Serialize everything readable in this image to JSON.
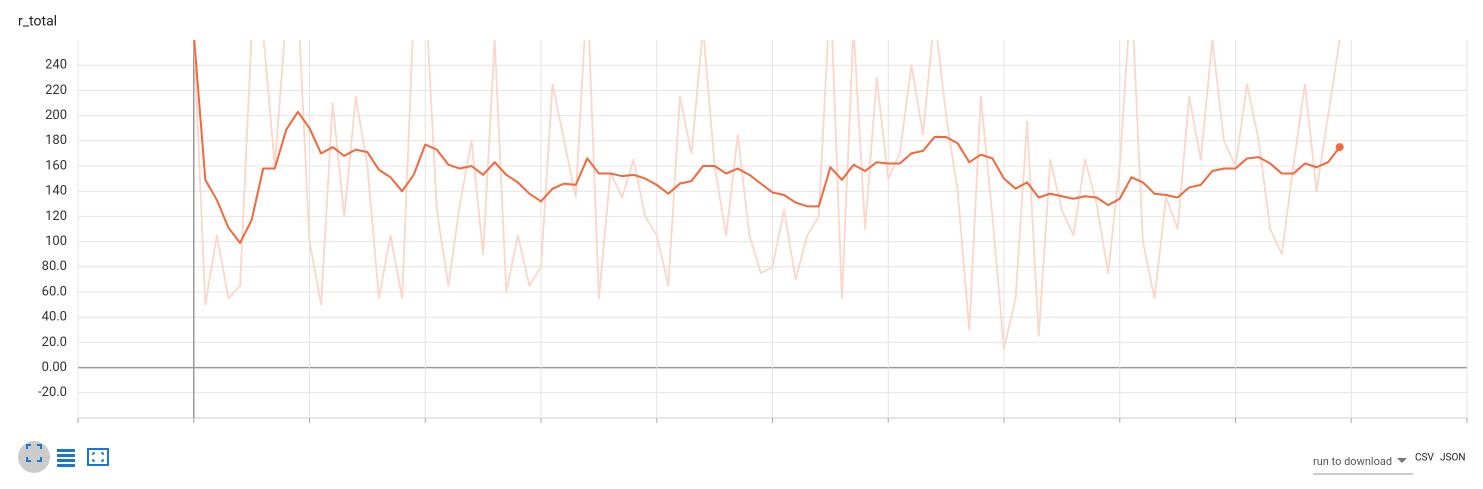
{
  "chart_data": {
    "type": "line",
    "title": "r_total",
    "x": [
      0,
      1,
      2,
      3,
      4,
      5,
      6,
      7,
      8,
      9,
      10,
      11,
      12,
      13,
      14,
      15,
      16,
      17,
      18,
      19,
      20,
      21,
      22,
      23,
      24,
      25,
      26,
      27,
      28,
      29,
      30,
      31,
      32,
      33,
      34,
      35,
      36,
      37,
      38,
      39,
      40,
      41,
      42,
      43,
      44,
      45,
      46,
      47,
      48,
      49,
      50,
      51,
      52,
      53,
      54,
      55,
      56,
      57,
      58,
      59,
      60,
      61,
      62,
      63,
      64,
      65,
      66,
      67,
      68,
      69,
      70,
      71,
      72,
      73,
      74,
      75,
      76,
      77,
      78,
      79,
      80,
      81,
      82,
      83,
      84,
      85,
      86,
      87,
      88,
      89,
      90,
      91,
      92,
      93,
      94,
      95,
      96,
      97,
      98,
      99
    ],
    "series": [
      {
        "color": "#fcd6c8",
        "values": [
          265,
          50,
          105,
          55,
          65,
          265,
          265,
          160,
          280,
          290,
          100,
          50,
          210,
          120,
          215,
          160,
          55,
          105,
          55,
          280,
          300,
          125,
          65,
          130,
          180,
          90,
          260,
          60,
          105,
          65,
          80,
          225,
          180,
          135,
          300,
          55,
          155,
          135,
          165,
          120,
          105,
          65,
          215,
          170,
          270,
          160,
          105,
          185,
          105,
          75,
          80,
          125,
          70,
          105,
          120,
          300,
          55,
          270,
          110,
          230,
          150,
          170,
          240,
          185,
          280,
          200,
          140,
          30,
          215,
          120,
          15,
          55,
          195,
          25,
          165,
          125,
          105,
          165,
          130,
          75,
          160,
          300,
          100,
          55,
          135,
          110,
          215,
          165,
          260,
          180,
          160,
          225,
          180,
          110,
          90,
          160,
          225,
          140,
          200,
          260
        ]
      },
      {
        "color": "#f4673a",
        "values": [
          265,
          149,
          133,
          111,
          99,
          117,
          158,
          158,
          189,
          203,
          190,
          170,
          175,
          168,
          173,
          171,
          157,
          151,
          140,
          153,
          177,
          173,
          161,
          158,
          160,
          153,
          163,
          153,
          147,
          138,
          132,
          142,
          146,
          145,
          166,
          154,
          154,
          152,
          153,
          150,
          145,
          138,
          146,
          148,
          160,
          160,
          154,
          158,
          153,
          146,
          139,
          137,
          131,
          128,
          128,
          159,
          149,
          161,
          156,
          163,
          162,
          162,
          170,
          172,
          183,
          183,
          178,
          163,
          169,
          166,
          150,
          142,
          147,
          135,
          138,
          136,
          134,
          136,
          135,
          129,
          134,
          151,
          147,
          138,
          137,
          135,
          143,
          145,
          156,
          158,
          158,
          166,
          167,
          162,
          154,
          154,
          162,
          159,
          163,
          175
        ]
      }
    ],
    "xlim": [
      -10,
      110
    ],
    "xticks": [
      -10,
      0,
      10,
      20,
      30,
      40,
      50,
      60,
      70,
      80,
      90,
      100,
      110
    ],
    "ylim": [
      -40,
      260
    ],
    "yticks": [
      {
        "value": -20,
        "label": "-20.0"
      },
      {
        "value": 0,
        "label": "0.00"
      },
      {
        "value": 20,
        "label": "20.0"
      },
      {
        "value": 40,
        "label": "40.0"
      },
      {
        "value": 60,
        "label": "60.0"
      },
      {
        "value": 80,
        "label": "80.0"
      },
      100,
      120,
      140,
      160,
      180,
      200,
      220,
      240
    ],
    "grid": true
  },
  "controls": {
    "download_label": "run to download",
    "formats": [
      "CSV",
      "JSON"
    ]
  }
}
